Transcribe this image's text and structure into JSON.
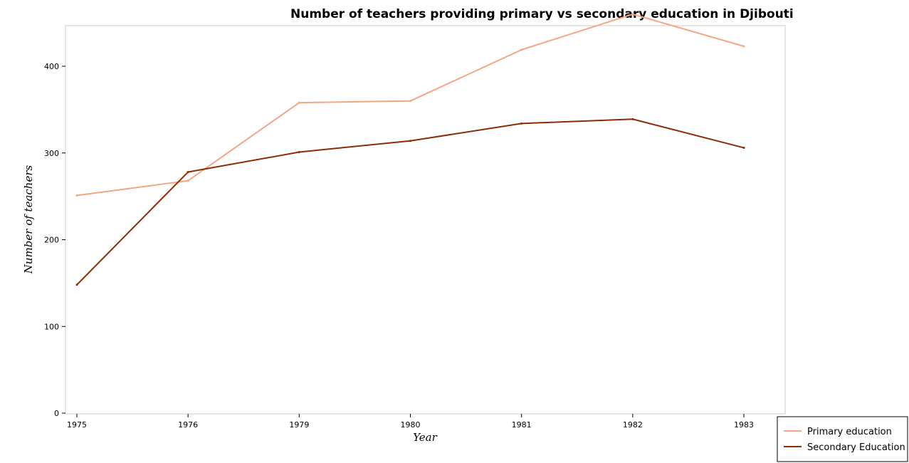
{
  "chart_data": {
    "type": "line",
    "title": "Number of teachers providing primary vs secondary education in Djibouti",
    "xlabel": "Year",
    "ylabel": "Number of teachers",
    "categories": [
      "1975",
      "1976",
      "1979",
      "1980",
      "1981",
      "1982",
      "1983"
    ],
    "ylim": [
      0,
      480
    ],
    "yticks": [
      "0",
      "100",
      "200",
      "300",
      "400"
    ],
    "grid": false,
    "legend_position": "bottom-right",
    "series": [
      {
        "name": "Primary education",
        "color": "#f4a582",
        "values": [
          251,
          268,
          358,
          360,
          419,
          460,
          423
        ]
      },
      {
        "name": "Secondary Education",
        "color": "#8c2d04",
        "values": [
          148,
          278,
          301,
          314,
          334,
          339,
          306
        ]
      }
    ]
  }
}
